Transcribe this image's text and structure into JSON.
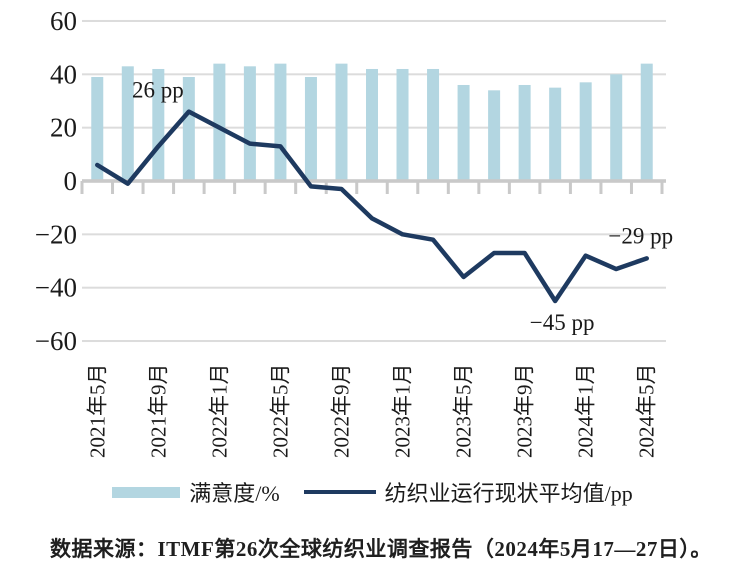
{
  "chart_data": {
    "type": "bar+line",
    "n_points": 19,
    "x_tick_labels": [
      "2021年5月",
      "2021年9月",
      "2022年1月",
      "2022年5月",
      "2022年9月",
      "2023年1月",
      "2023年5月",
      "2023年9月",
      "2024年1月",
      "2024年5月"
    ],
    "x_tick_label_indices": [
      0,
      2,
      4,
      6,
      8,
      10,
      12,
      14,
      16,
      18
    ],
    "y_ticks": [
      60,
      40,
      20,
      0,
      -20,
      -40,
      -60
    ],
    "y_tick_labels": [
      "60",
      "40",
      "20",
      "0",
      "−20",
      "−40",
      "−60"
    ],
    "ylim": [
      -60,
      60
    ],
    "grid": "horizontal",
    "legend_position": "bottom-center",
    "series": [
      {
        "name": "满意度/%",
        "type": "bar",
        "color": "#b3d6e1",
        "values": [
          39,
          43,
          42,
          39,
          44,
          43,
          44,
          39,
          44,
          42,
          42,
          42,
          36,
          34,
          36,
          35,
          37,
          40,
          44
        ]
      },
      {
        "name": "纺织业运行现状平均值/pp",
        "type": "line",
        "color": "#1e3a60",
        "values": [
          6,
          -1,
          13,
          26,
          20,
          14,
          13,
          -2,
          -3,
          -14,
          -20,
          -22,
          -36,
          -27,
          -27,
          -45,
          -28,
          -33,
          -29
        ]
      }
    ],
    "annotations": [
      {
        "text": "26 pp",
        "point_index": 3,
        "series": "line",
        "position": "above-left"
      },
      {
        "text": "−45 pp",
        "point_index": 15,
        "series": "line",
        "position": "below"
      },
      {
        "text": "−29 pp",
        "point_index": 18,
        "series": "line",
        "position": "above-left"
      }
    ],
    "legend": [
      {
        "label": "满意度/%",
        "swatch": "bar"
      },
      {
        "label": "纺织业运行现状平均值/pp",
        "swatch": "line"
      }
    ]
  },
  "colors": {
    "bar": "#b3d6e1",
    "line": "#1e3a60",
    "gridline": "#dcdcdc",
    "axis": "#c9c9c9",
    "text": "#1a1a1a"
  },
  "source_note": "数据来源：ITMF第26次全球纺织业调查报告（2024年5月17—27日）。"
}
